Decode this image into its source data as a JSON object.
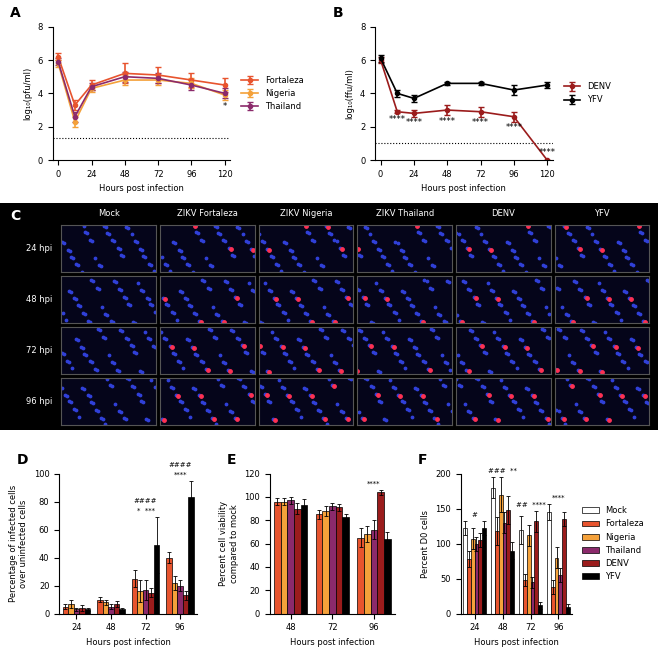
{
  "chart_data": [
    {
      "type": "line",
      "title": "A",
      "x": [
        0,
        12,
        24,
        48,
        72,
        96,
        120
      ],
      "xlabel": "Hours post infection",
      "ylabel": "log₁₀(pfu/ml)",
      "xlim": [
        -4,
        124
      ],
      "xticks": [
        0,
        24,
        48,
        72,
        96,
        120
      ],
      "ylim": [
        0,
        8
      ],
      "yticks": [
        0,
        2,
        4,
        6,
        8
      ],
      "detection_limit": 1.3,
      "legend": "right",
      "marker": "o",
      "series": [
        {
          "name": "Fortaleza",
          "color": "#e8542e",
          "values": [
            6.2,
            3.3,
            4.5,
            5.2,
            5.1,
            4.8,
            4.5
          ],
          "errors": [
            0.2,
            0.3,
            0.3,
            0.6,
            0.5,
            0.4,
            0.4
          ]
        },
        {
          "name": "Nigeria",
          "color": "#f4a13a",
          "values": [
            5.8,
            2.3,
            4.3,
            4.8,
            4.8,
            4.6,
            3.9
          ],
          "errors": [
            0.2,
            0.3,
            0.2,
            0.3,
            0.3,
            0.3,
            0.3
          ]
        },
        {
          "name": "Thailand",
          "color": "#8b2a6b",
          "values": [
            5.9,
            2.6,
            4.4,
            5.0,
            4.9,
            4.5,
            4.0
          ],
          "errors": [
            0.2,
            0.3,
            0.2,
            0.3,
            0.3,
            0.3,
            0.3
          ]
        }
      ],
      "annotations": [
        {
          "x": 120,
          "text": "*"
        }
      ]
    },
    {
      "type": "line",
      "title": "B",
      "x": [
        0,
        12,
        24,
        48,
        72,
        96,
        120
      ],
      "xlabel": "Hours post infection",
      "ylabel": "log₁₀(ffu/ml)",
      "xlim": [
        -4,
        124
      ],
      "xticks": [
        0,
        24,
        48,
        72,
        96,
        120
      ],
      "ylim": [
        0,
        8
      ],
      "yticks": [
        0,
        2,
        4,
        6,
        8
      ],
      "detection_limit": 1.0,
      "legend": "right",
      "marker": "o",
      "series": [
        {
          "name": "DENV",
          "color": "#9b1c1c",
          "values": [
            6.0,
            2.9,
            2.8,
            3.0,
            2.9,
            2.6,
            0.0
          ],
          "errors": [
            0.2,
            0.1,
            0.2,
            0.3,
            0.3,
            0.3,
            0.0
          ]
        },
        {
          "name": "YFV",
          "color": "#000000",
          "values": [
            6.1,
            4.0,
            3.7,
            4.6,
            4.6,
            4.2,
            4.5
          ],
          "errors": [
            0.2,
            0.2,
            0.2,
            0.1,
            0.1,
            0.3,
            0.2
          ]
        }
      ],
      "annotations": [
        {
          "x": 12,
          "text": "****"
        },
        {
          "x": 24,
          "text": "****"
        },
        {
          "x": 48,
          "text": "****"
        },
        {
          "x": 72,
          "text": "****"
        },
        {
          "x": 96,
          "text": "****"
        },
        {
          "x": 120,
          "text": "****"
        }
      ]
    },
    {
      "type": "image_grid",
      "title": "C",
      "columns": [
        "Mock",
        "ZIKV Fortaleza",
        "ZIKV Nigeria",
        "ZIKV Thailand",
        "DENV",
        "YFV"
      ],
      "rows": [
        "24 hpi",
        "48 hpi",
        "72 hpi",
        "96 hpi"
      ]
    },
    {
      "type": "bar",
      "title": "D",
      "categories": [
        "24",
        "48",
        "72",
        "96"
      ],
      "xlabel": "Hours post infection",
      "ylabel": "Percentage of infected cells over uninfected cells",
      "ylim": [
        0,
        100
      ],
      "yticks": [
        0,
        20,
        40,
        60,
        80,
        100
      ],
      "series": [
        {
          "name": "Fortaleza",
          "color": "#e8542e",
          "values": [
            5,
            10,
            25,
            40
          ],
          "errors": [
            2,
            2,
            6,
            4
          ]
        },
        {
          "name": "Nigeria",
          "color": "#f4a13a",
          "values": [
            7,
            8,
            16,
            22
          ],
          "errors": [
            3,
            2,
            8,
            5
          ]
        },
        {
          "name": "Thailand",
          "color": "#8b2a6b",
          "values": [
            3,
            5,
            17,
            20
          ],
          "errors": [
            1,
            2,
            7,
            4
          ]
        },
        {
          "name": "DENV",
          "color": "#9b1c1c",
          "values": [
            4,
            7,
            15,
            13
          ],
          "errors": [
            2,
            2,
            3,
            3
          ]
        },
        {
          "name": "YFV",
          "color": "#000000",
          "values": [
            3,
            3,
            49,
            83
          ],
          "errors": [
            1,
            1,
            20,
            12
          ]
        }
      ],
      "annotations": [
        {
          "category": "72",
          "text": "*  ***"
        },
        {
          "category": "72",
          "text": "####"
        },
        {
          "category": "96",
          "text": "****"
        },
        {
          "category": "96",
          "text": "####"
        }
      ]
    },
    {
      "type": "bar",
      "title": "E",
      "categories": [
        "48",
        "72",
        "96"
      ],
      "xlabel": "Hours post infection",
      "ylabel": "Percent cell viability compared to mock",
      "ylim": [
        0,
        120
      ],
      "yticks": [
        0,
        20,
        40,
        60,
        80,
        100,
        120
      ],
      "series": [
        {
          "name": "Fortaleza",
          "color": "#e8542e",
          "values": [
            96,
            85,
            65
          ],
          "errors": [
            3,
            4,
            8
          ]
        },
        {
          "name": "Nigeria",
          "color": "#f4a13a",
          "values": [
            96,
            88,
            68
          ],
          "errors": [
            3,
            4,
            7
          ]
        },
        {
          "name": "Thailand",
          "color": "#8b2a6b",
          "values": [
            97,
            92,
            72
          ],
          "errors": [
            3,
            3,
            8
          ]
        },
        {
          "name": "DENV",
          "color": "#9b1c1c",
          "values": [
            90,
            91,
            104
          ],
          "errors": [
            5,
            3,
            2
          ]
        },
        {
          "name": "YFV",
          "color": "#000000",
          "values": [
            93,
            83,
            64
          ],
          "errors": [
            5,
            2,
            6
          ]
        }
      ],
      "annotations": [
        {
          "category": "96",
          "text": "****"
        }
      ]
    },
    {
      "type": "bar",
      "title": "F",
      "categories": [
        "24",
        "48",
        "72",
        "96"
      ],
      "xlabel": "Hours post infection",
      "ylabel": "Percent D0 cells",
      "ylim": [
        0,
        200
      ],
      "yticks": [
        0,
        50,
        100,
        150,
        200
      ],
      "legend": "right",
      "series": [
        {
          "name": "Mock",
          "color": "#ffffff",
          "values": [
            122,
            180,
            120,
            145
          ],
          "errors": [
            10,
            15,
            20,
            12
          ]
        },
        {
          "name": "Fortaleza",
          "color": "#e8542e",
          "values": [
            78,
            118,
            48,
            38
          ],
          "errors": [
            12,
            20,
            8,
            10
          ]
        },
        {
          "name": "Nigeria",
          "color": "#f4a13a",
          "values": [
            107,
            170,
            112,
            80
          ],
          "errors": [
            15,
            25,
            15,
            15
          ]
        },
        {
          "name": "Thailand",
          "color": "#8b2a6b",
          "values": [
            100,
            130,
            45,
            55
          ],
          "errors": [
            10,
            15,
            8,
            10
          ]
        },
        {
          "name": "DENV",
          "color": "#9b1c1c",
          "values": [
            105,
            148,
            132,
            135
          ],
          "errors": [
            10,
            20,
            15,
            10
          ]
        },
        {
          "name": "YFV",
          "color": "#000000",
          "values": [
            122,
            90,
            12,
            10
          ],
          "errors": [
            10,
            12,
            5,
            4
          ]
        }
      ],
      "annotations": [
        {
          "category": "24",
          "text": "#"
        },
        {
          "category": "48",
          "text": "###  **"
        },
        {
          "category": "72",
          "text": "##  ****"
        },
        {
          "category": "96",
          "text": "****"
        }
      ]
    }
  ]
}
